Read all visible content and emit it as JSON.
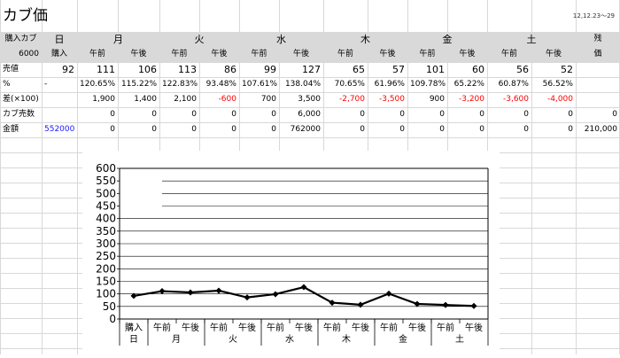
{
  "title": "カブ価",
  "date_range": "12,12.23～29",
  "header": {
    "label_col": "購入カブ",
    "label_col_value": "6000",
    "days": [
      "日",
      "月",
      "火",
      "水",
      "木",
      "金",
      "土"
    ],
    "zan": "残",
    "sub": [
      "購入",
      "午前",
      "午後",
      "午前",
      "午後",
      "午前",
      "午後",
      "午前",
      "午後",
      "午前",
      "午後",
      "午前",
      "午後"
    ],
    "sub_last": "価"
  },
  "rows": {
    "price": {
      "label": "売値",
      "values": [
        "92",
        "111",
        "106",
        "113",
        "86",
        "99",
        "127",
        "65",
        "57",
        "101",
        "60",
        "56",
        "52"
      ],
      "last": ""
    },
    "pct": {
      "label": "%",
      "values": [
        "-",
        "120.65%",
        "115.22%",
        "122.83%",
        "93.48%",
        "107.61%",
        "138.04%",
        "70.65%",
        "61.96%",
        "109.78%",
        "65.22%",
        "60.87%",
        "56.52%"
      ],
      "last": ""
    },
    "diff": {
      "label": "差(×100)",
      "values": [
        "",
        "1,900",
        "1,400",
        "2,100",
        "-600",
        "700",
        "3,500",
        "-2,700",
        "-3,500",
        "900",
        "-3,200",
        "-3,600",
        "-4,000"
      ],
      "last": ""
    },
    "sold": {
      "label": "カブ売数",
      "values": [
        "",
        "0",
        "0",
        "0",
        "0",
        "0",
        "6,000",
        "0",
        "0",
        "0",
        "0",
        "0",
        "0"
      ],
      "last": "0"
    },
    "amount": {
      "label": "金額",
      "values": [
        "552000",
        "0",
        "0",
        "0",
        "0",
        "0",
        "762000",
        "0",
        "0",
        "0",
        "0",
        "0",
        "0"
      ],
      "last": "210,000"
    }
  },
  "chart_data": {
    "type": "line",
    "categories": [
      "購入",
      "午前",
      "午後",
      "午前",
      "午後",
      "午前",
      "午後",
      "午前",
      "午後",
      "午前",
      "午後",
      "午前",
      "午後"
    ],
    "day_labels": [
      "日",
      "月",
      "火",
      "水",
      "木",
      "金",
      "土"
    ],
    "series": [
      {
        "values": [
          92,
          111,
          106,
          113,
          86,
          99,
          127,
          65,
          57,
          101,
          60,
          56,
          52
        ]
      }
    ],
    "ylim": [
      0,
      600
    ],
    "yticks": [
      "0",
      "50",
      "100",
      "150",
      "200",
      "250",
      "300",
      "350",
      "400",
      "450",
      "500",
      "550",
      "600"
    ],
    "grid": true,
    "line_color": "#000000",
    "marker": "diamond"
  },
  "colors": {
    "header_bg": "#d9d9d9",
    "negative": "#ff0000",
    "link": "#1a1aff",
    "gridline": "#d8d8d8"
  }
}
